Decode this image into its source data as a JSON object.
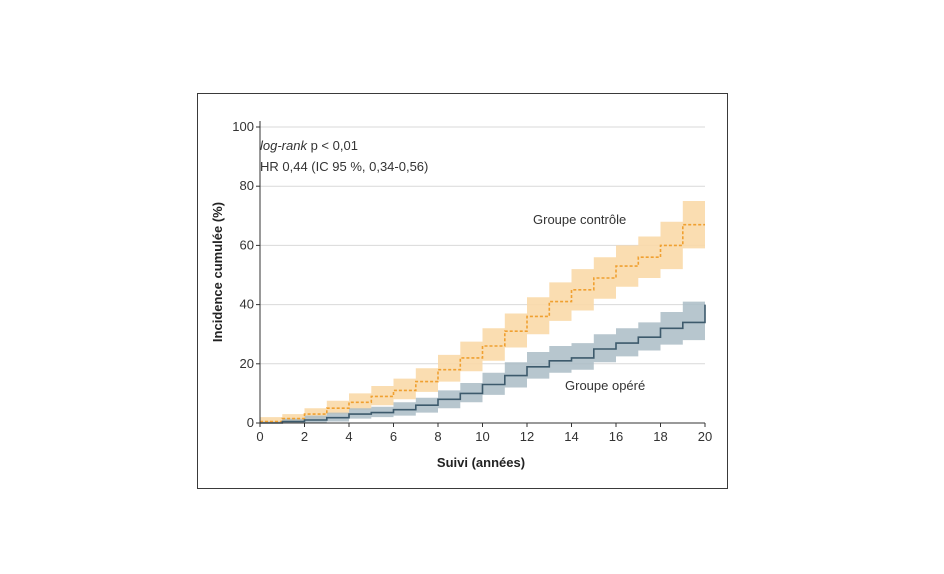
{
  "chart_data": {
    "type": "line",
    "xlabel": "Suivi (années)",
    "ylabel": "Incidence cumulée (%)",
    "xlim": [
      0,
      20
    ],
    "ylim": [
      0,
      100
    ],
    "xticks": [
      "0",
      "2",
      "4",
      "6",
      "8",
      "10",
      "12",
      "14",
      "16",
      "18",
      "20"
    ],
    "yticks": [
      "0",
      "20",
      "40",
      "60",
      "80",
      "100"
    ],
    "grid": true,
    "annotations": {
      "logrank_italic": "log-rank",
      "logrank_rest": " p < 0,01",
      "hr": "HR 0,44 (IC 95 %, 0,34-0,56)"
    },
    "x": [
      0,
      1,
      2,
      3,
      4,
      5,
      6,
      7,
      8,
      9,
      10,
      11,
      12,
      13,
      14,
      15,
      16,
      17,
      18,
      19,
      20
    ],
    "series": [
      {
        "name": "Groupe contrôle",
        "color": "#f0a030",
        "band_color": "#f9d9a8",
        "style": "dashed",
        "values": [
          0.5,
          1.5,
          3,
          5,
          7,
          9,
          11,
          14,
          18,
          22,
          26,
          31,
          36,
          41,
          45,
          49,
          53,
          56,
          60,
          67,
          67
        ],
        "lower": [
          0,
          0.5,
          1.5,
          3,
          4.5,
          6,
          8,
          10.5,
          14,
          17.5,
          21,
          25.5,
          30,
          34.5,
          38,
          42,
          46,
          49,
          52,
          59,
          59
        ],
        "upper": [
          2,
          3,
          5,
          7.5,
          10,
          12.5,
          15,
          18.5,
          23,
          27.5,
          32,
          37,
          42.5,
          47.5,
          52,
          56,
          60,
          63,
          68,
          75,
          75
        ]
      },
      {
        "name": "Groupe opéré",
        "color": "#3d5a6c",
        "band_color": "#aabcc6",
        "style": "solid",
        "values": [
          0,
          0.5,
          1,
          1.8,
          3,
          3.5,
          4.5,
          6,
          8,
          10,
          13,
          16,
          19,
          21,
          22,
          25,
          27,
          29,
          32,
          34,
          40
        ],
        "lower": [
          0,
          0,
          0,
          0.5,
          1.5,
          2,
          2.5,
          3.5,
          5,
          7,
          9.5,
          12,
          15,
          17,
          18,
          20.5,
          22.5,
          24.5,
          26.5,
          28,
          33
        ],
        "upper": [
          0.5,
          1.5,
          2.5,
          3.5,
          5,
          5.5,
          7,
          8.5,
          11,
          13.5,
          17,
          20.5,
          24,
          26,
          27,
          30,
          32,
          34,
          37.5,
          41,
          47
        ]
      }
    ]
  }
}
